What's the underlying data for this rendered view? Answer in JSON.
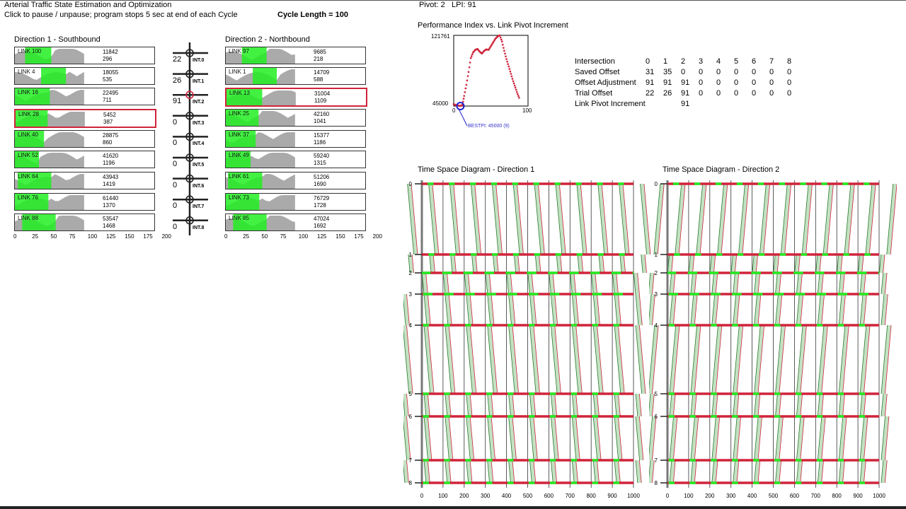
{
  "header": {
    "title": "Arterial Traffic State Estimation and Optimization",
    "subtitle": "Click to pause / unpause;  program stops 5 sec at end of each Cycle",
    "cycle_length": "Cycle Length = 100",
    "pivot": "Pivot: 2",
    "lpi": "LPI: 91"
  },
  "dir1": {
    "title": "Direction 1 - Southbound",
    "links": [
      {
        "name": "LINK 100",
        "v1": "11842",
        "v2": "296",
        "g": [
          14,
          50
        ],
        "selected": false
      },
      {
        "name": "LINK 4",
        "v1": "18055",
        "v2": "535",
        "g": [
          36,
          70
        ],
        "selected": false
      },
      {
        "name": "LINK 16",
        "v1": "22495",
        "v2": "711",
        "g": [
          0,
          48
        ],
        "selected": false
      },
      {
        "name": "LINK 28",
        "v1": "5452",
        "v2": "387",
        "g": [
          0,
          44
        ],
        "selected": true
      },
      {
        "name": "LINK 40",
        "v1": "28875",
        "v2": "860",
        "g": [
          0,
          40
        ],
        "selected": false
      },
      {
        "name": "LINK 52",
        "v1": "41620",
        "v2": "1196",
        "g": [
          0,
          33
        ],
        "selected": false
      },
      {
        "name": "LINK 64",
        "v1": "43943",
        "v2": "1419",
        "g": [
          4,
          50
        ],
        "selected": false
      },
      {
        "name": "LINK 76",
        "v1": "61440",
        "v2": "1370",
        "g": [
          0,
          46
        ],
        "selected": false
      },
      {
        "name": "LINK 88",
        "v1": "53547",
        "v2": "1468",
        "g": [
          10,
          56
        ],
        "selected": false
      }
    ]
  },
  "dir2": {
    "title": "Direction 2 - Northbound",
    "links": [
      {
        "name": "LINK 97",
        "v1": "9685",
        "v2": "218",
        "g": [
          22,
          56
        ],
        "selected": false
      },
      {
        "name": "LINK 1",
        "v1": "14709",
        "v2": "588",
        "g": [
          37,
          70
        ],
        "selected": false
      },
      {
        "name": "LINK 13",
        "v1": "31004",
        "v2": "1109",
        "g": [
          0,
          49
        ],
        "selected": true
      },
      {
        "name": "LINK 25",
        "v1": "42160",
        "v2": "1041",
        "g": [
          0,
          45
        ],
        "selected": false
      },
      {
        "name": "LINK 37",
        "v1": "15377",
        "v2": "1186",
        "g": [
          0,
          41
        ],
        "selected": false
      },
      {
        "name": "LINK 49",
        "v1": "59240",
        "v2": "1315",
        "g": [
          0,
          34
        ],
        "selected": false
      },
      {
        "name": "LINK 61",
        "v1": "51206",
        "v2": "1690",
        "g": [
          3,
          50
        ],
        "selected": false
      },
      {
        "name": "LINK 73",
        "v1": "76729",
        "v2": "1728",
        "g": [
          0,
          46
        ],
        "selected": false
      },
      {
        "name": "LINK 85",
        "v1": "47024",
        "v2": "1692",
        "g": [
          10,
          56
        ],
        "selected": false
      }
    ]
  },
  "link_axis": [
    "0",
    "25",
    "50",
    "75",
    "100",
    "125",
    "150",
    "175",
    "200"
  ],
  "intersections": [
    {
      "off": "22",
      "label": "INT.0"
    },
    {
      "off": "26",
      "label": "INT.1"
    },
    {
      "off": "91",
      "label": "INT.2",
      "pivot": true
    },
    {
      "off": "0",
      "label": "INT.3"
    },
    {
      "off": "0",
      "label": "INT.4"
    },
    {
      "off": "0",
      "label": "INT.5"
    },
    {
      "off": "0",
      "label": "INT.6"
    },
    {
      "off": "0",
      "label": "INT.7"
    },
    {
      "off": "0",
      "label": "INT.8"
    }
  ],
  "pi_chart": {
    "title": "Performance Index vs. Link Pivot Increment",
    "ymax": "121761",
    "ymin": "45000",
    "xmin": "0",
    "xmax": "100",
    "best": "BESTPI: 45000 (9)",
    "best_x": 9,
    "best_y": 45000,
    "chart_data": {
      "type": "scatter",
      "ylim": [
        45000,
        121761
      ],
      "xlim": [
        0,
        100
      ],
      "x": [
        0,
        3,
        6,
        9,
        12,
        14,
        17,
        20,
        23,
        26,
        29,
        32,
        35,
        38,
        41,
        44,
        47,
        50,
        53,
        56,
        59,
        62,
        65,
        68,
        71,
        74,
        77,
        80,
        83,
        86,
        89
      ],
      "y": [
        47000,
        46000,
        45500,
        45000,
        46500,
        56000,
        68000,
        82000,
        97000,
        103000,
        106000,
        107000,
        104000,
        102000,
        105000,
        106500,
        106000,
        110000,
        114000,
        118000,
        120500,
        121761,
        115000,
        105000,
        96000,
        88000,
        80000,
        72000,
        65000,
        58000,
        52000
      ]
    }
  },
  "table": {
    "rows": [
      [
        "Intersection",
        "0",
        "1",
        "2",
        "3",
        "4",
        "5",
        "6",
        "7",
        "8"
      ],
      [
        "Saved Offset",
        "31",
        "35",
        "0",
        "0",
        "0",
        "0",
        "0",
        "0",
        "0"
      ],
      [
        "Offset Adjustment",
        "91",
        "91",
        "91",
        "0",
        "0",
        "0",
        "0",
        "0",
        "0"
      ],
      [
        "Trial Offset",
        "22",
        "26",
        "91",
        "0",
        "0",
        "0",
        "0",
        "0",
        "0"
      ],
      [
        "Link Pivot Increment",
        "",
        "",
        "91",
        "",
        "",
        "",
        "",
        "",
        ""
      ]
    ]
  },
  "tsd1": {
    "title": "Time Space Diagram - Direction 1"
  },
  "tsd2": {
    "title": "Time Space Diagram - Direction 2"
  },
  "tsd_y": [
    "0",
    "1",
    "2",
    "3",
    "4",
    "5",
    "6",
    "7",
    "8"
  ],
  "tsd_x": [
    "0",
    "100",
    "200",
    "300",
    "400",
    "500",
    "600",
    "700",
    "800",
    "900",
    "1000"
  ],
  "colors": {
    "green": "#22ee22",
    "red": "#d0243c",
    "band": "#b9dcb9",
    "gray": "#aaaaaa"
  }
}
